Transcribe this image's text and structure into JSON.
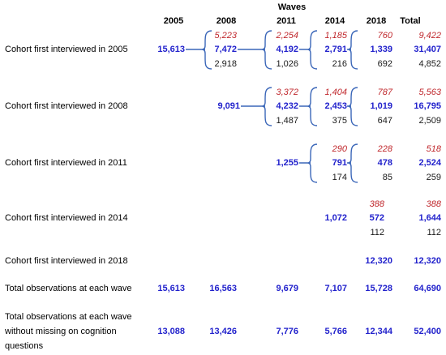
{
  "header": {
    "waves_title": "Waves",
    "columns": [
      "2005",
      "2008",
      "2011",
      "2014",
      "2018",
      "Total"
    ]
  },
  "rows": [
    {
      "label": "Cohort first interviewed in 2005",
      "values": {
        "w2005": "15,613",
        "w2008": {
          "red": "5,223",
          "blue": "7,472",
          "black": "2,918"
        },
        "w2011": {
          "red": "2,254",
          "blue": "4,192",
          "black": "1,026"
        },
        "w2014": {
          "red": "1,185",
          "blue": "2,791",
          "black": "216"
        },
        "w2018": {
          "red": "760",
          "blue": "1,339",
          "black": "692"
        },
        "total": {
          "red": "9,422",
          "blue": "31,407",
          "black": "4,852"
        }
      }
    },
    {
      "label": "Cohort first interviewed in 2008",
      "values": {
        "w2008": "9,091",
        "w2011": {
          "red": "3,372",
          "blue": "4,232",
          "black": "1,487"
        },
        "w2014": {
          "red": "1,404",
          "blue": "2,453",
          "black": "375"
        },
        "w2018": {
          "red": "787",
          "blue": "1,019",
          "black": "647"
        },
        "total": {
          "red": "5,563",
          "blue": "16,795",
          "black": "2,509"
        }
      }
    },
    {
      "label": "Cohort first interviewed in 2011",
      "values": {
        "w2011": "1,255",
        "w2014": {
          "red": "290",
          "blue": "791",
          "black": "174"
        },
        "w2018": {
          "red": "228",
          "blue": "478",
          "black": "85"
        },
        "total": {
          "red": "518",
          "blue": "2,524",
          "black": "259"
        }
      }
    },
    {
      "label": "Cohort first interviewed in 2014",
      "values": {
        "w2014": "1,072",
        "w2018": {
          "red": "388",
          "blue": "572",
          "black": "112"
        },
        "total": {
          "red": "388",
          "blue": "1,644",
          "black": "112"
        }
      }
    },
    {
      "label": "Cohort first interviewed in 2018",
      "values": {
        "w2018": "12,320",
        "total": "12,320"
      }
    }
  ],
  "totals": {
    "label": "Total observations at each wave",
    "values": [
      "15,613",
      "16,563",
      "9,679",
      "7,107",
      "15,728",
      "64,690"
    ]
  },
  "cognition": {
    "label_lines": [
      "Total observations at each wave",
      "without missing on cognition",
      "questions"
    ],
    "values": [
      "13,088",
      "13,426",
      "7,776",
      "5,766",
      "12,344",
      "52,400"
    ]
  },
  "colors": {
    "retained": "#2222cc",
    "attrition": "#c0282d",
    "other": "#1a1a1a",
    "connector": "#3a66b8"
  }
}
